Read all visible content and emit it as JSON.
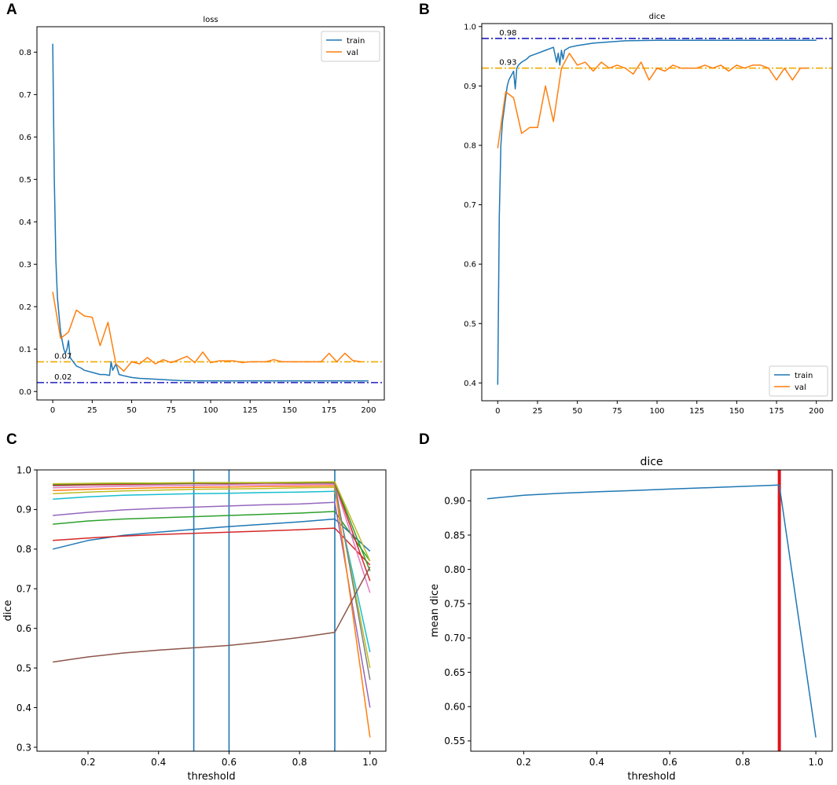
{
  "panels": {
    "A": "A",
    "B": "B",
    "C": "C",
    "D": "D"
  },
  "chart_data": [
    {
      "type": "line",
      "panel": "A",
      "title": "loss",
      "xlabel": "",
      "ylabel": "",
      "xlim": [
        -10,
        210
      ],
      "ylim": [
        -0.02,
        0.86
      ],
      "xticks": [
        0,
        25,
        50,
        75,
        100,
        125,
        150,
        175,
        200
      ],
      "yticks": [
        0.0,
        0.1,
        0.2,
        0.3,
        0.4,
        0.5,
        0.6,
        0.7,
        0.8
      ],
      "ytick_decimals": 1,
      "legend": {
        "position": "top-right"
      },
      "series": [
        {
          "name": "train",
          "color": "#1f77b4",
          "x": [
            0,
            1,
            2,
            3,
            4,
            5,
            6,
            7,
            8,
            9,
            10,
            11,
            12,
            13,
            14,
            15,
            18,
            20,
            25,
            30,
            33,
            36,
            37,
            38,
            40,
            42,
            45,
            50,
            55,
            60,
            70,
            80,
            90,
            100,
            120,
            150,
            180,
            200
          ],
          "y": [
            0.82,
            0.5,
            0.31,
            0.22,
            0.18,
            0.14,
            0.12,
            0.1,
            0.09,
            0.1,
            0.12,
            0.08,
            0.075,
            0.07,
            0.065,
            0.06,
            0.055,
            0.05,
            0.045,
            0.04,
            0.04,
            0.038,
            0.07,
            0.05,
            0.065,
            0.04,
            0.037,
            0.033,
            0.031,
            0.03,
            0.028,
            0.026,
            0.025,
            0.025,
            0.025,
            0.025,
            0.025,
            0.025
          ]
        },
        {
          "name": "val",
          "color": "#ff7f0e",
          "x": [
            0,
            5,
            10,
            15,
            20,
            25,
            30,
            35,
            40,
            45,
            50,
            55,
            60,
            65,
            70,
            75,
            80,
            85,
            90,
            95,
            100,
            105,
            110,
            115,
            120,
            125,
            130,
            135,
            140,
            145,
            150,
            155,
            160,
            165,
            170,
            175,
            180,
            185,
            190,
            195
          ],
          "y": [
            0.235,
            0.125,
            0.14,
            0.192,
            0.178,
            0.175,
            0.108,
            0.163,
            0.065,
            0.048,
            0.07,
            0.065,
            0.08,
            0.065,
            0.075,
            0.068,
            0.075,
            0.083,
            0.068,
            0.093,
            0.068,
            0.072,
            0.072,
            0.072,
            0.068,
            0.07,
            0.07,
            0.07,
            0.075,
            0.07,
            0.07,
            0.07,
            0.07,
            0.07,
            0.07,
            0.09,
            0.07,
            0.09,
            0.073,
            0.07
          ]
        }
      ],
      "hlines": [
        {
          "y": 0.07,
          "label": "0.07",
          "color": "#f2a900"
        },
        {
          "y": 0.021,
          "label": "0.02",
          "color": "#1f1fbf"
        }
      ]
    },
    {
      "type": "line",
      "panel": "B",
      "title": "dice",
      "xlabel": "",
      "ylabel": "",
      "xlim": [
        -10,
        210
      ],
      "ylim": [
        0.37,
        1.005
      ],
      "xticks": [
        0,
        25,
        50,
        75,
        100,
        125,
        150,
        175,
        200
      ],
      "yticks": [
        0.4,
        0.5,
        0.6,
        0.7,
        0.8,
        0.9,
        1.0
      ],
      "ytick_decimals": 1,
      "legend": {
        "position": "bottom-right"
      },
      "series": [
        {
          "name": "train",
          "color": "#1f77b4",
          "x": [
            0,
            1,
            2,
            3,
            4,
            5,
            6,
            7,
            8,
            9,
            10,
            11,
            12,
            13,
            15,
            18,
            20,
            25,
            30,
            35,
            37,
            38,
            39,
            40,
            41,
            42,
            45,
            50,
            60,
            70,
            80,
            100,
            150,
            200
          ],
          "y": [
            0.397,
            0.68,
            0.8,
            0.84,
            0.86,
            0.88,
            0.9,
            0.91,
            0.915,
            0.92,
            0.925,
            0.895,
            0.93,
            0.935,
            0.94,
            0.945,
            0.95,
            0.955,
            0.96,
            0.965,
            0.94,
            0.955,
            0.935,
            0.96,
            0.945,
            0.96,
            0.965,
            0.968,
            0.972,
            0.974,
            0.976,
            0.977,
            0.977,
            0.977
          ]
        },
        {
          "name": "val",
          "color": "#ff7f0e",
          "x": [
            0,
            5,
            10,
            15,
            20,
            25,
            30,
            35,
            40,
            45,
            50,
            55,
            60,
            65,
            70,
            75,
            80,
            85,
            90,
            95,
            100,
            105,
            110,
            115,
            120,
            125,
            130,
            135,
            140,
            145,
            150,
            155,
            160,
            165,
            170,
            175,
            180,
            185,
            190,
            195
          ],
          "y": [
            0.795,
            0.89,
            0.88,
            0.82,
            0.83,
            0.83,
            0.9,
            0.84,
            0.93,
            0.955,
            0.935,
            0.94,
            0.925,
            0.94,
            0.93,
            0.935,
            0.93,
            0.92,
            0.94,
            0.91,
            0.93,
            0.925,
            0.935,
            0.93,
            0.93,
            0.93,
            0.935,
            0.93,
            0.935,
            0.925,
            0.935,
            0.93,
            0.935,
            0.935,
            0.93,
            0.91,
            0.93,
            0.91,
            0.93,
            0.93
          ]
        }
      ],
      "hlines": [
        {
          "y": 0.98,
          "label": "0.98",
          "color": "#1f1fbf"
        },
        {
          "y": 0.93,
          "label": "0.93",
          "color": "#f2a900"
        }
      ]
    },
    {
      "type": "line",
      "panel": "C",
      "title": "",
      "xlabel": "threshold",
      "ylabel": "dice",
      "xlim": [
        0.055,
        1.045
      ],
      "ylim": [
        0.29,
        1.0
      ],
      "xticks": [
        0.2,
        0.4,
        0.6,
        0.8,
        1.0
      ],
      "xtick_decimals": 1,
      "yticks": [
        0.3,
        0.4,
        0.5,
        0.6,
        0.7,
        0.8,
        0.9,
        1.0
      ],
      "ytick_decimals": 1,
      "x": [
        0.1,
        0.2,
        0.3,
        0.4,
        0.5,
        0.6,
        0.7,
        0.8,
        0.9,
        1.0
      ],
      "vlines": [
        {
          "x": 0.5,
          "color": "#1f77b4"
        },
        {
          "x": 0.6,
          "color": "#1f77b4"
        },
        {
          "x": 0.9,
          "color": "#1f77b4"
        }
      ],
      "series": [
        {
          "color": "#1f77b4",
          "values": [
            0.8,
            0.822,
            0.835,
            0.843,
            0.85,
            0.857,
            0.863,
            0.869,
            0.876,
            0.795
          ]
        },
        {
          "color": "#d62728",
          "values": [
            0.822,
            0.828,
            0.833,
            0.837,
            0.84,
            0.843,
            0.846,
            0.849,
            0.853,
            0.76
          ]
        },
        {
          "color": "#2ca02c",
          "values": [
            0.863,
            0.871,
            0.876,
            0.879,
            0.882,
            0.885,
            0.888,
            0.891,
            0.895,
            0.77
          ]
        },
        {
          "color": "#9467bd",
          "values": [
            0.885,
            0.893,
            0.899,
            0.903,
            0.906,
            0.909,
            0.912,
            0.914,
            0.918,
            0.4
          ]
        },
        {
          "color": "#17becf",
          "values": [
            0.926,
            0.932,
            0.936,
            0.938,
            0.94,
            0.941,
            0.943,
            0.944,
            0.946,
            0.54
          ]
        },
        {
          "color": "#bcbd22",
          "values": [
            0.94,
            0.944,
            0.947,
            0.949,
            0.951,
            0.952,
            0.953,
            0.955,
            0.956,
            0.5
          ]
        },
        {
          "color": "#ff7f0e",
          "values": [
            0.948,
            0.951,
            0.953,
            0.955,
            0.956,
            0.957,
            0.958,
            0.959,
            0.96,
            0.325
          ]
        },
        {
          "color": "#e377c2",
          "values": [
            0.955,
            0.957,
            0.959,
            0.96,
            0.961,
            0.962,
            0.962,
            0.963,
            0.964,
            0.69
          ]
        },
        {
          "color": "#7f7f7f",
          "values": [
            0.96,
            0.962,
            0.963,
            0.964,
            0.965,
            0.965,
            0.966,
            0.966,
            0.967,
            0.47
          ]
        },
        {
          "color": "#d62728",
          "values": [
            0.962,
            0.963,
            0.964,
            0.965,
            0.966,
            0.966,
            0.967,
            0.967,
            0.968,
            0.72
          ]
        },
        {
          "color": "#2ca02c",
          "values": [
            0.964,
            0.965,
            0.966,
            0.966,
            0.967,
            0.967,
            0.968,
            0.968,
            0.969,
            0.745
          ]
        },
        {
          "color": "#bcbd22",
          "values": [
            0.965,
            0.966,
            0.967,
            0.967,
            0.968,
            0.968,
            0.968,
            0.969,
            0.97,
            0.77
          ]
        },
        {
          "color": "#8c564b",
          "values": [
            0.515,
            0.528,
            0.538,
            0.545,
            0.551,
            0.557,
            0.566,
            0.577,
            0.59,
            0.755
          ]
        }
      ]
    },
    {
      "type": "line",
      "panel": "D",
      "title": "dice",
      "xlabel": "threshold",
      "ylabel": "mean dice",
      "xlim": [
        0.055,
        1.045
      ],
      "ylim": [
        0.535,
        0.945
      ],
      "xticks": [
        0.2,
        0.4,
        0.6,
        0.8,
        1.0
      ],
      "xtick_decimals": 1,
      "yticks": [
        0.55,
        0.6,
        0.65,
        0.7,
        0.75,
        0.8,
        0.85,
        0.9
      ],
      "ytick_decimals": 2,
      "x": [
        0.1,
        0.2,
        0.3,
        0.4,
        0.5,
        0.6,
        0.7,
        0.8,
        0.9,
        1.0
      ],
      "vlines": [
        {
          "x": 0.9,
          "color": "#e0141b"
        }
      ],
      "series": [
        {
          "color": "#1f77b4",
          "values": [
            0.903,
            0.908,
            0.911,
            0.913,
            0.915,
            0.917,
            0.919,
            0.921,
            0.923,
            0.555
          ]
        }
      ]
    }
  ]
}
